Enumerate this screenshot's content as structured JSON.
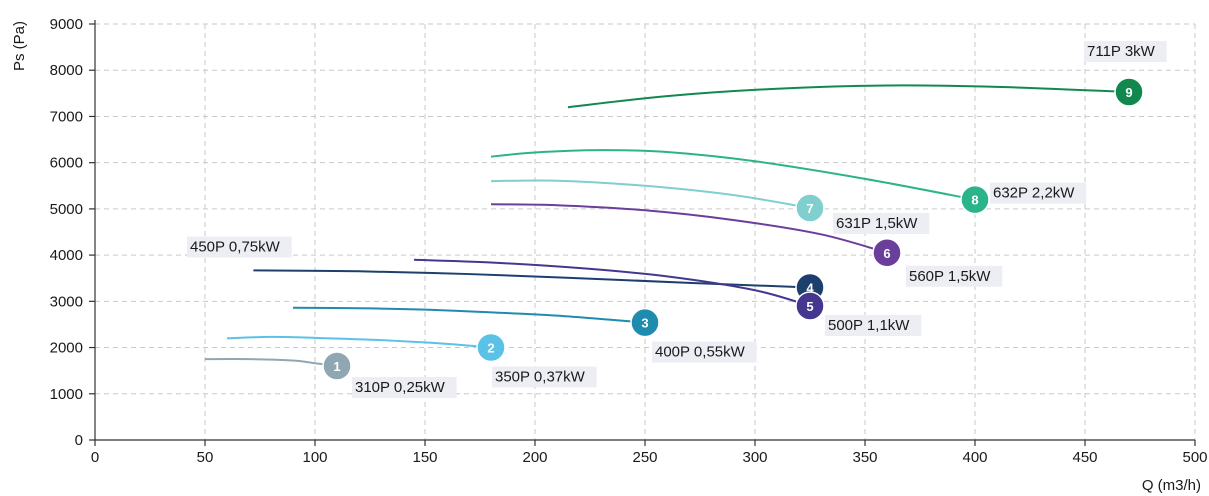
{
  "chart_data": {
    "type": "line",
    "xlabel": "Q (m3/h)",
    "ylabel": "Ps (Pa)",
    "xlim": [
      0,
      500
    ],
    "ylim": [
      0,
      9000
    ],
    "xticks": [
      0,
      50,
      100,
      150,
      200,
      250,
      300,
      350,
      400,
      450,
      500
    ],
    "yticks": [
      0,
      1000,
      2000,
      3000,
      4000,
      5000,
      6000,
      7000,
      8000,
      9000
    ],
    "grid": true,
    "series": [
      {
        "name": "310P 0,25kW",
        "marker": "1",
        "color": "#8fa7b3",
        "x": [
          50,
          70,
          90,
          100,
          110
        ],
        "y": [
          1750,
          1750,
          1720,
          1660,
          1600
        ]
      },
      {
        "name": "350P 0,37kW",
        "marker": "2",
        "color": "#5bc2e7",
        "x": [
          60,
          80,
          100,
          130,
          160,
          180
        ],
        "y": [
          2200,
          2230,
          2210,
          2160,
          2080,
          2000
        ]
      },
      {
        "name": "400P 0,55kW",
        "marker": "3",
        "color": "#1f8bae",
        "x": [
          90,
          120,
          150,
          180,
          210,
          250
        ],
        "y": [
          2860,
          2850,
          2820,
          2760,
          2690,
          2540
        ]
      },
      {
        "name": "450P 0,75kW",
        "marker": "4",
        "color": "#1d3f6e",
        "x": [
          72,
          120,
          170,
          220,
          270,
          325
        ],
        "y": [
          3670,
          3650,
          3590,
          3500,
          3400,
          3300
        ]
      },
      {
        "name": "500P 1,1kW",
        "marker": "5",
        "color": "#43378f",
        "x": [
          145,
          180,
          220,
          260,
          300,
          325
        ],
        "y": [
          3900,
          3840,
          3720,
          3540,
          3240,
          2900
        ]
      },
      {
        "name": "560P 1,5kW",
        "marker": "6",
        "color": "#6a3f9c",
        "x": [
          180,
          210,
          250,
          290,
          330,
          360
        ],
        "y": [
          5100,
          5080,
          4970,
          4760,
          4450,
          4050
        ]
      },
      {
        "name": "631P 1,5kW",
        "marker": "7",
        "color": "#7fcfcf",
        "x": [
          180,
          210,
          250,
          290,
          325
        ],
        "y": [
          5600,
          5610,
          5500,
          5300,
          5020
        ]
      },
      {
        "name": "632P 2,2kW",
        "marker": "8",
        "color": "#2bb38b",
        "x": [
          180,
          200,
          230,
          260,
          300,
          350,
          400
        ],
        "y": [
          6130,
          6220,
          6270,
          6230,
          6030,
          5650,
          5200
        ]
      },
      {
        "name": "711P 3kW",
        "marker": "9",
        "color": "#12884f",
        "x": [
          215,
          260,
          310,
          360,
          410,
          470
        ],
        "y": [
          7200,
          7440,
          7600,
          7670,
          7640,
          7530
        ]
      }
    ]
  }
}
